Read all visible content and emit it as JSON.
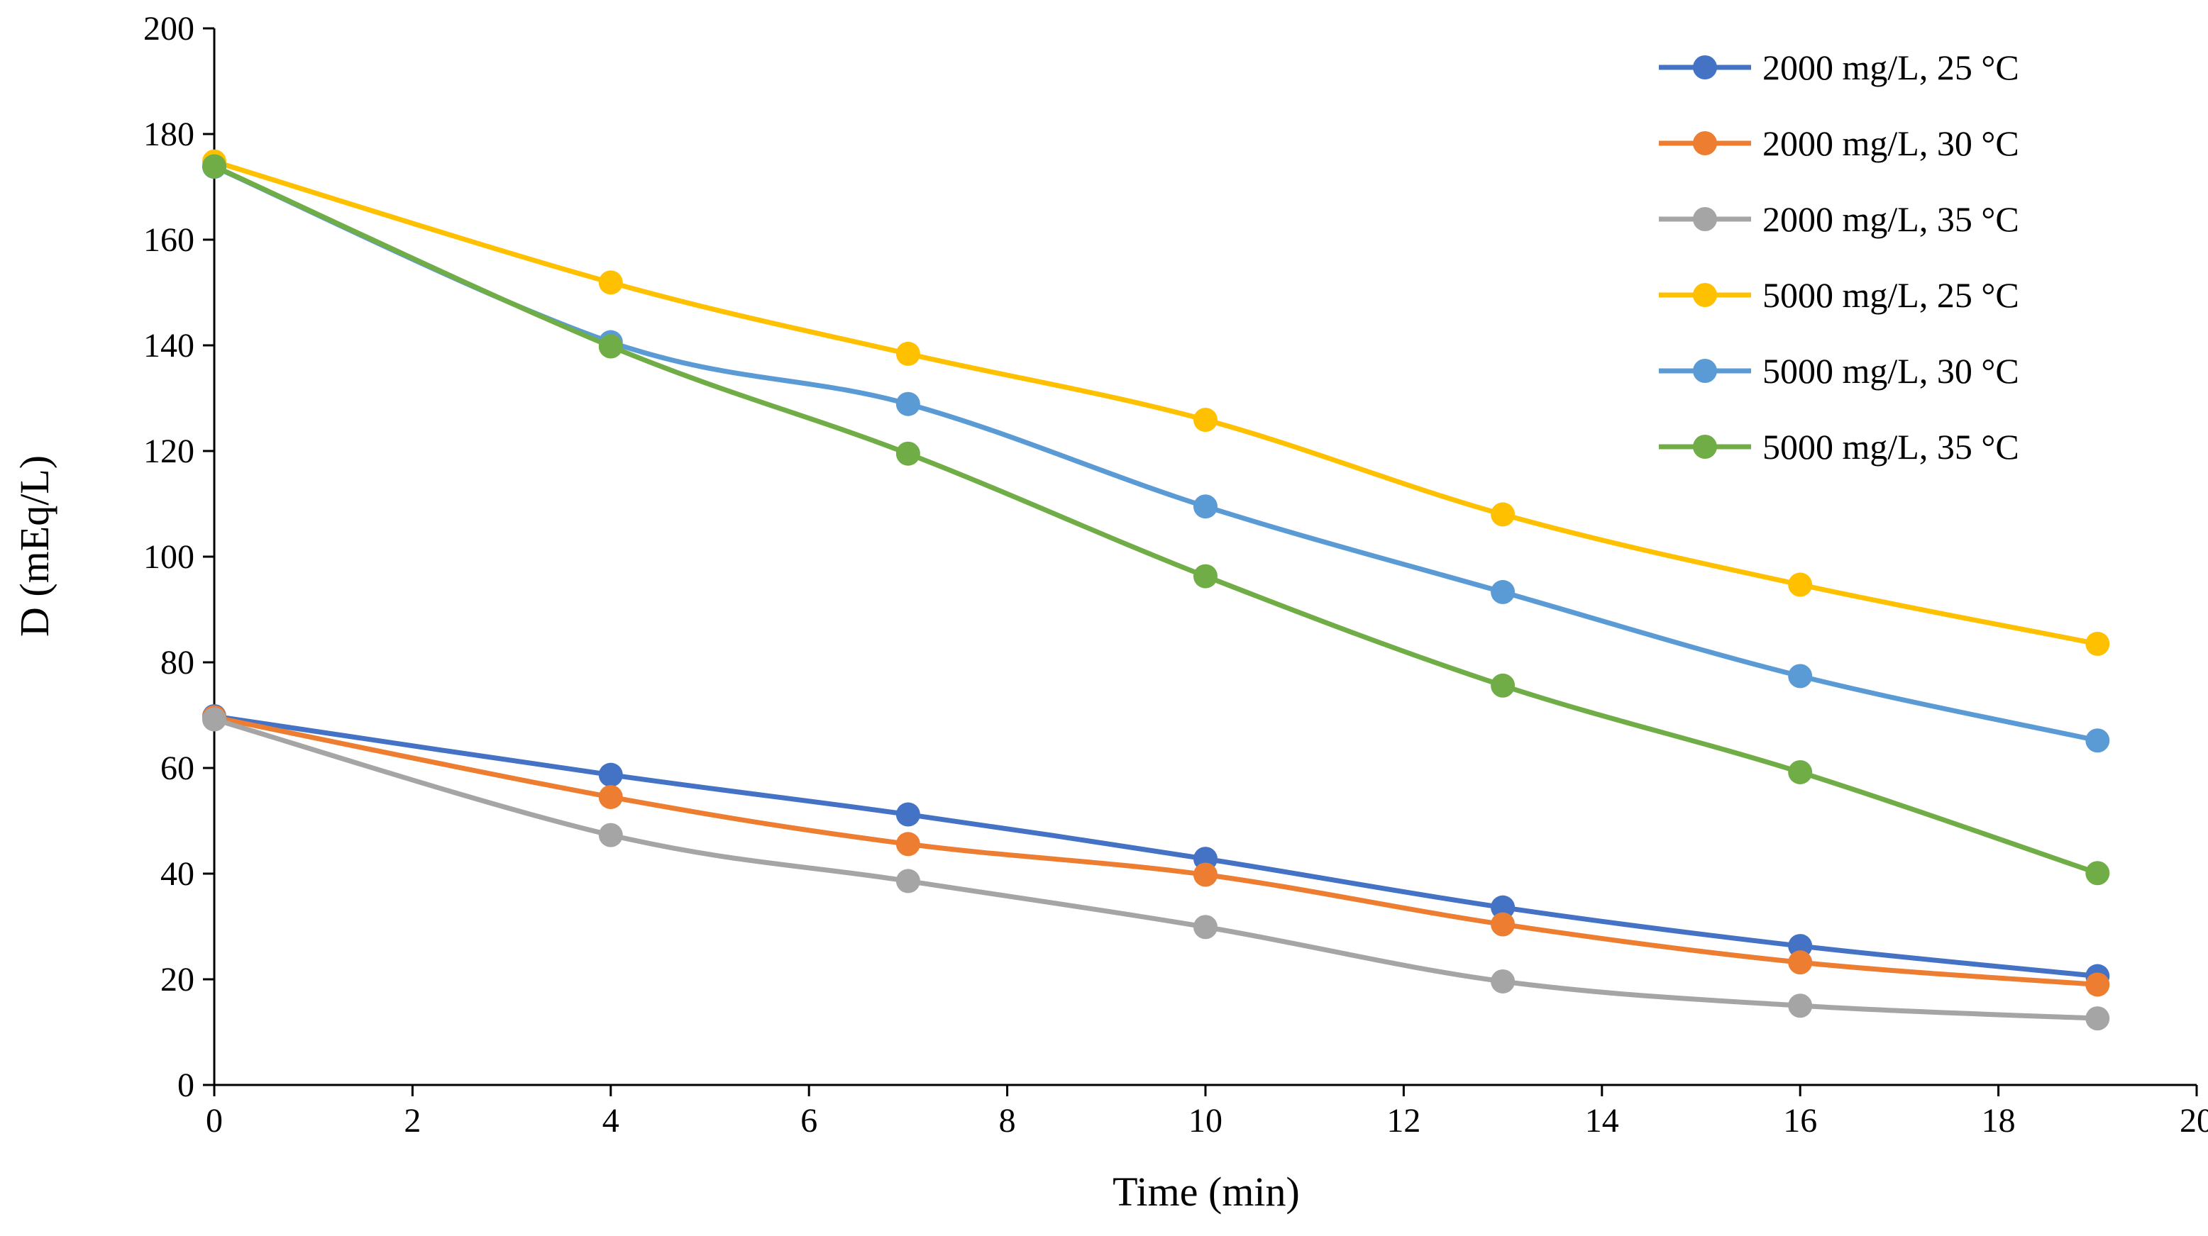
{
  "chart_data": {
    "type": "line",
    "title": "",
    "xlabel": "Time (min)",
    "ylabel": "D (mEq/L)",
    "xlim": [
      0,
      20
    ],
    "ylim": [
      0,
      200
    ],
    "xticks": [
      0,
      2,
      4,
      6,
      8,
      10,
      12,
      14,
      16,
      18,
      20
    ],
    "yticks": [
      0,
      20,
      40,
      60,
      80,
      100,
      120,
      140,
      160,
      180,
      200
    ],
    "grid": false,
    "legend_position": "top-right",
    "x": [
      0,
      4,
      7,
      10,
      13,
      16,
      19
    ],
    "series": [
      {
        "name": "2000 mg/L, 25 °C",
        "color": "#4472C4",
        "values": [
          69.8,
          58.7,
          51.2,
          42.8,
          33.6,
          26.3,
          20.6
        ]
      },
      {
        "name": "2000 mg/L, 30 °C",
        "color": "#ED7D31",
        "values": [
          69.6,
          54.5,
          45.6,
          39.8,
          30.4,
          23.2,
          19.0
        ]
      },
      {
        "name": "2000 mg/L, 35 °C",
        "color": "#A5A5A5",
        "values": [
          69.2,
          47.3,
          38.6,
          29.9,
          19.6,
          15.0,
          12.6
        ]
      },
      {
        "name": "5000 mg/L, 25 °C",
        "color": "#FFC000",
        "values": [
          174.8,
          151.9,
          138.4,
          125.9,
          108.0,
          94.7,
          83.5
        ]
      },
      {
        "name": "5000 mg/L, 30 °C",
        "color": "#5B9BD5",
        "values": [
          173.8,
          140.6,
          128.9,
          109.5,
          93.3,
          77.4,
          65.2
        ]
      },
      {
        "name": "5000 mg/L, 35 °C",
        "color": "#70AD47",
        "values": [
          173.9,
          139.8,
          119.5,
          96.3,
          75.6,
          59.2,
          40.1
        ]
      }
    ]
  }
}
